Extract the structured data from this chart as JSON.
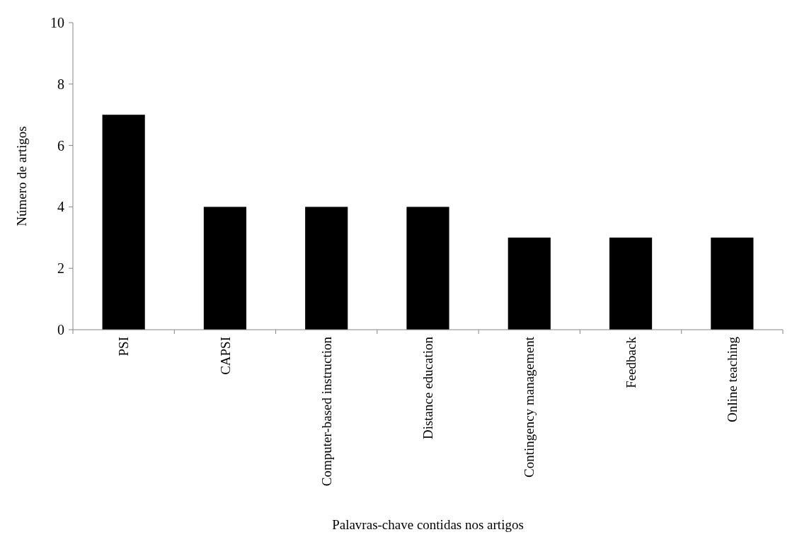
{
  "chart_data": {
    "type": "bar",
    "xlabel": "Palavras-chave contidas nos artigos",
    "ylabel": "Número  de artigos",
    "categories": [
      "PSI",
      "CAPSI",
      "Computer-based instruction",
      "Distance education",
      "Contingency management",
      "Feedback",
      "Online teaching"
    ],
    "values": [
      7,
      4,
      4,
      4,
      3,
      3,
      3
    ],
    "color": "#000000",
    "ylim": [
      0,
      10
    ],
    "yticks": [
      0,
      2,
      4,
      6,
      8,
      10
    ],
    "grid": false
  }
}
